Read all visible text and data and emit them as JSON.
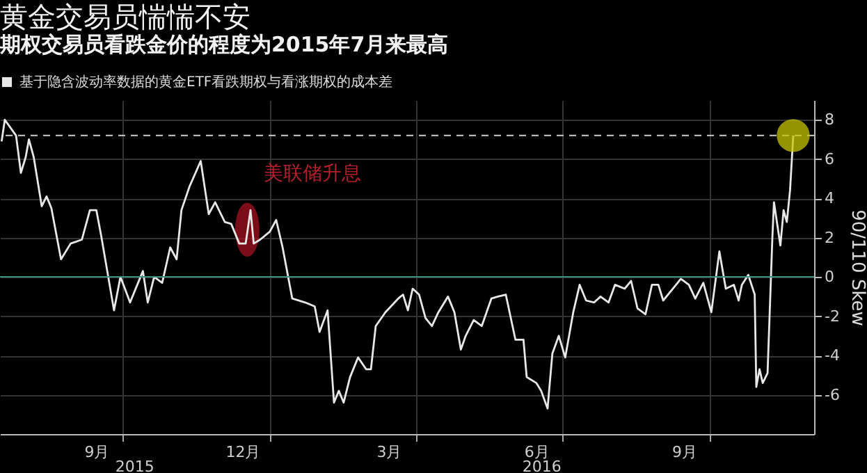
{
  "chart_data": {
    "type": "line",
    "title": "黄金交易员惴惴不安",
    "subtitle": "期权交易员看跌金价的程度为2015年7月来最高",
    "ylabel": "90/110 Skew",
    "x": [
      "2015-07-18",
      "2015-07-20",
      "2015-07-27",
      "2015-07-30",
      "2015-08-02",
      "2015-08-04",
      "2015-08-07",
      "2015-08-12",
      "2015-08-15",
      "2015-08-18",
      "2015-08-24",
      "2015-08-30",
      "2015-09-06",
      "2015-09-11",
      "2015-09-15",
      "2015-09-18",
      "2015-09-26",
      "2015-09-30",
      "2015-10-06",
      "2015-10-14",
      "2015-10-17",
      "2015-10-21",
      "2015-10-26",
      "2015-10-31",
      "2015-11-04",
      "2015-11-07",
      "2015-11-12",
      "2015-11-19",
      "2015-11-24",
      "2015-11-28",
      "2015-12-04",
      "2015-12-08",
      "2015-12-13",
      "2015-12-17",
      "2015-12-20",
      "2015-12-22",
      "2015-12-26",
      "2016-01-01",
      "2016-01-05",
      "2016-01-09",
      "2016-01-15",
      "2016-01-23",
      "2016-01-29",
      "2016-02-01",
      "2016-02-06",
      "2016-02-10",
      "2016-02-13",
      "2016-02-16",
      "2016-02-20",
      "2016-02-25",
      "2016-03-01",
      "2016-03-04",
      "2016-03-07",
      "2016-03-13",
      "2016-03-21",
      "2016-03-24",
      "2016-03-27",
      "2016-03-30",
      "2016-04-03",
      "2016-04-07",
      "2016-04-11",
      "2016-04-15",
      "2016-04-21",
      "2016-04-25",
      "2016-04-29",
      "2016-05-02",
      "2016-05-07",
      "2016-05-12",
      "2016-05-18",
      "2016-05-22",
      "2016-05-27",
      "2016-06-02",
      "2016-06-07",
      "2016-06-09",
      "2016-06-15",
      "2016-06-18",
      "2016-06-22",
      "2016-06-25",
      "2016-06-29",
      "2016-07-03",
      "2016-07-08",
      "2016-07-12",
      "2016-07-16",
      "2016-07-21",
      "2016-07-25",
      "2016-07-30",
      "2016-08-03",
      "2016-08-09",
      "2016-08-13",
      "2016-08-17",
      "2016-08-22",
      "2016-08-26",
      "2016-08-30",
      "2016-09-02",
      "2016-09-08",
      "2016-09-13",
      "2016-09-18",
      "2016-09-22",
      "2016-09-27",
      "2016-10-02",
      "2016-10-07",
      "2016-10-11",
      "2016-10-16",
      "2016-10-19",
      "2016-10-21",
      "2016-10-25",
      "2016-10-29",
      "2016-10-30",
      "2016-11-01",
      "2016-11-03",
      "2016-11-06",
      "2016-11-09",
      "2016-11-10",
      "2016-11-14",
      "2016-11-16",
      "2016-11-18",
      "2016-11-20",
      "2016-11-22"
    ],
    "series": [
      {
        "name": "基于隐含波动率数据的黄金ETF看跌期权与看涨期权的成本差",
        "color": "#e8e8e8",
        "values": [
          6.9,
          8.0,
          7.2,
          5.3,
          6.1,
          7.0,
          6.1,
          3.6,
          4.1,
          3.5,
          0.9,
          1.7,
          1.9,
          3.4,
          3.4,
          2.1,
          -1.7,
          0,
          -1.3,
          0.3,
          -1.3,
          0,
          -0.3,
          1.5,
          0.9,
          3.4,
          4.6,
          5.9,
          3.2,
          3.8,
          2.8,
          2.7,
          1.7,
          1.7,
          3.4,
          1.7,
          1.9,
          2.3,
          2.9,
          1.5,
          -1.1,
          -1.3,
          -1.5,
          -2.8,
          -1.7,
          -6.4,
          -5.8,
          -6.4,
          -5.1,
          -4.1,
          -4.7,
          -4.7,
          -2.5,
          -1.8,
          -1.1,
          -0.9,
          -1.7,
          -0.6,
          -0.9,
          -2.1,
          -2.5,
          -1.8,
          -1.0,
          -1.8,
          -3.7,
          -3.0,
          -2.2,
          -2.5,
          -1.1,
          -1.0,
          -0.9,
          -3.2,
          -3.2,
          -5.1,
          -5.4,
          -5.8,
          -6.7,
          -3.9,
          -3.0,
          -4.1,
          -1.8,
          -0.4,
          -1.2,
          -1.3,
          -1.0,
          -1.3,
          -0.4,
          -0.6,
          -0.2,
          -1.6,
          -1.9,
          -0.4,
          -0.4,
          -1.2,
          -0.6,
          -0.1,
          -0.4,
          -1.1,
          -0.3,
          -1.8,
          1.3,
          -0.6,
          -0.4,
          -1.2,
          -0.4,
          0.1,
          -0.9,
          -5.6,
          -4.7,
          -5.4,
          -4.9,
          2.0,
          3.8,
          1.6,
          3.4,
          2.8,
          4.4,
          7.2
        ]
      }
    ],
    "xlim": [
      "2015-07-17",
      "2016-12-05"
    ],
    "xticks": [
      {
        "value": "2015-09-15",
        "label": "9月"
      },
      {
        "value": "2015-10-01",
        "label": null
      },
      {
        "value": "2015-12-15",
        "label": "12月"
      },
      {
        "value": "2016-01-01",
        "label": null
      },
      {
        "value": "2016-03-15",
        "label": "3月"
      },
      {
        "value": "2016-04-01",
        "label": null
      },
      {
        "value": "2016-06-15",
        "label": "6月"
      },
      {
        "value": "2016-07-01",
        "label": null
      },
      {
        "value": "2016-09-15",
        "label": "9月"
      },
      {
        "value": "2016-10-01",
        "label": null
      }
    ],
    "ylim": [
      -8,
      9
    ],
    "yticks": [
      -6,
      -4,
      -2,
      0,
      2,
      4,
      6,
      8
    ],
    "ref_lines": [
      {
        "axis": "y",
        "value": 0,
        "color": "#3f8f80"
      },
      {
        "axis": "y",
        "value": 7.2,
        "color": "#cccccc",
        "line_style": "dashed"
      }
    ],
    "annotations": [
      {
        "text": "美联储升息",
        "x": "2015-12-18",
        "y": 2.4
      },
      "2015",
      "2016"
    ],
    "grid": true,
    "legend": "top left"
  }
}
